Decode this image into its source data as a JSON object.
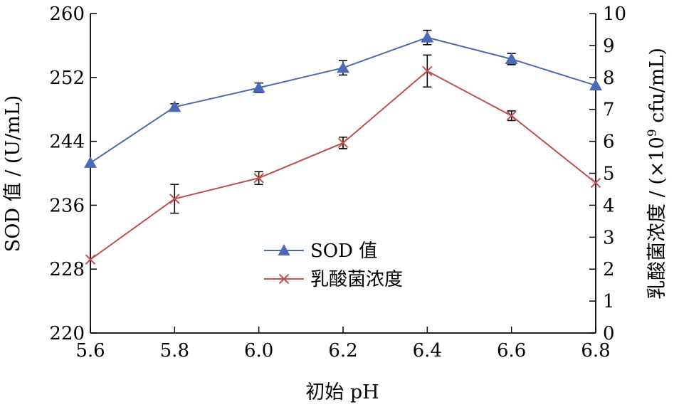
{
  "chart_data": {
    "type": "line",
    "x": [
      5.6,
      5.8,
      6.0,
      6.2,
      6.4,
      6.6,
      6.8
    ],
    "x_tick_labels": [
      "5.6",
      "5.8",
      "6.0",
      "6.2",
      "6.4",
      "6.6",
      "6.8"
    ],
    "xlabel": "初始 pH",
    "xlim": [
      5.6,
      6.8
    ],
    "y_left": {
      "label": "SOD 值 / (U/mL)",
      "lim": [
        220,
        260
      ],
      "ticks": [
        220,
        228,
        236,
        244,
        252,
        260
      ],
      "tick_labels": [
        "220",
        "228",
        "236",
        "244",
        "252",
        "260"
      ]
    },
    "y_right": {
      "label_parts": [
        "乳酸菌浓度 / (×10",
        "9",
        " cfu/mL)"
      ],
      "lim": [
        0,
        10
      ],
      "ticks": [
        0,
        1,
        2,
        3,
        4,
        5,
        6,
        7,
        8,
        9,
        10
      ],
      "tick_labels": [
        "0",
        "1",
        "2",
        "3",
        "4",
        "5",
        "6",
        "7",
        "8",
        "9",
        "10"
      ]
    },
    "series": [
      {
        "name": "SOD 值",
        "axis": "left",
        "marker": "triangle",
        "color": "#4a6ab5",
        "values": [
          241.3,
          248.3,
          250.7,
          253.2,
          257.0,
          254.3,
          251.0
        ],
        "errors": [
          0.0,
          0.4,
          0.6,
          0.9,
          0.9,
          0.7,
          0.0
        ]
      },
      {
        "name": "乳酸菌浓度",
        "axis": "right",
        "marker": "x",
        "color": "#c0504d",
        "values": [
          2.3,
          4.2,
          4.85,
          5.95,
          8.2,
          6.8,
          4.7
        ],
        "errors": [
          0.0,
          0.45,
          0.2,
          0.18,
          0.5,
          0.15,
          0.0
        ]
      }
    ],
    "legend_position": "center"
  }
}
